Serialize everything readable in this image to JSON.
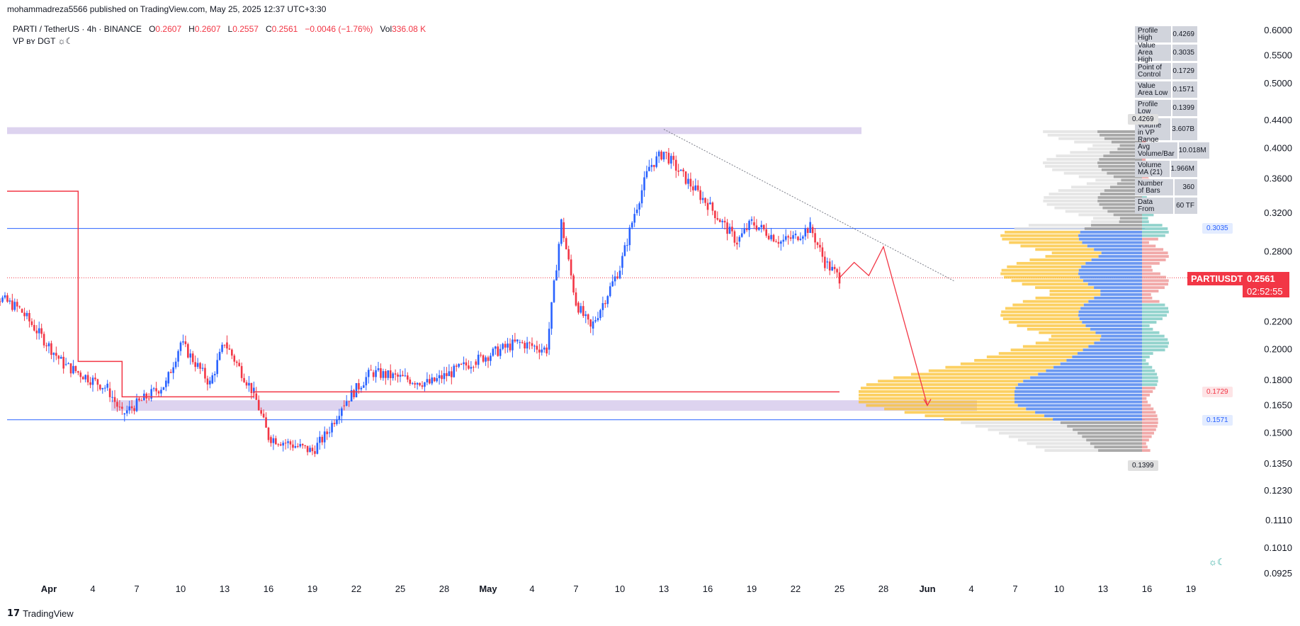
{
  "header": {
    "published": "mohammadreza5566 published on TradingView.com, May 25, 2025 12:37 UTC+3:30"
  },
  "legend": {
    "symbol": "PARTI / TetherUS · 4h · BINANCE",
    "o_label": "O",
    "o_value": "0.2607",
    "h_label": "H",
    "h_value": "0.2607",
    "l_label": "L",
    "l_value": "0.2557",
    "c_label": "C",
    "c_value": "0.2561",
    "change": "−0.0046 (−1.76%)",
    "vol_label": "Vol",
    "vol_value": "336.08 K",
    "indicator": "VP ʙʏ DGT ☼☾"
  },
  "stats": [
    {
      "key": "Profile High",
      "value": "0.4269"
    },
    {
      "key": "Value Area High",
      "value": "0.3035"
    },
    {
      "key": "Point of Control",
      "value": "0.1729"
    },
    {
      "key": "Value Area Low",
      "value": "0.1571"
    },
    {
      "key": "Profile Low",
      "value": "0.1399"
    },
    {
      "key": "Total Volume in VP Range",
      "value": "3.607B"
    },
    {
      "key": "Avg Volume/Bar",
      "value": "10.018M"
    },
    {
      "key": "Volume MA (21)",
      "value": "1.966M"
    },
    {
      "key": "Number of Bars",
      "value": "360"
    },
    {
      "key": "Data From",
      "value": "60 TF"
    }
  ],
  "last_price": {
    "ticker": "PARTIUSDT",
    "price": "0.2561",
    "countdown": "02:52:55",
    "color": "#f23645"
  },
  "profile_tags": {
    "high": "0.4269",
    "vah": "0.3035",
    "poc": "0.1729",
    "val": "0.1571",
    "low": "0.1399"
  },
  "footer": {
    "brand": "TradingView",
    "logo": "tv-logo-icon"
  },
  "colors": {
    "up": "#2962ff",
    "down": "#f23645",
    "zone": "#d1c4e9",
    "vah_val_line": "#2962ff",
    "volume_up": "#fbc02d",
    "volume_bar": "#5b8def",
    "volume_gray": "#9e9e9e"
  },
  "chart_data": {
    "type": "candlestick",
    "symbol": "PARTI / TetherUS",
    "interval": "4h",
    "exchange": "BINANCE",
    "y_axis": {
      "scale": "log",
      "ticks": [
        0.0925,
        0.101,
        0.111,
        0.123,
        0.135,
        0.15,
        0.165,
        0.18,
        0.2,
        0.22,
        0.28,
        0.32,
        0.36,
        0.4,
        0.44,
        0.5,
        0.55,
        0.6
      ],
      "tick_labels": [
        "0.0925",
        "0.1010",
        "0.1110",
        "0.1230",
        "0.1350",
        "0.1500",
        "0.1650",
        "0.1800",
        "0.2000",
        "0.2200",
        "0.2800",
        "0.3200",
        "0.3600",
        "0.4000",
        "0.4400",
        "0.5000",
        "0.5500",
        "0.6000"
      ]
    },
    "x_axis": {
      "tick_labels": [
        "Apr",
        "4",
        "7",
        "10",
        "13",
        "16",
        "19",
        "22",
        "25",
        "28",
        "May",
        "4",
        "7",
        "10",
        "13",
        "16",
        "19",
        "22",
        "25",
        "28",
        "Jun",
        "4",
        "7",
        "10",
        "13",
        "16",
        "19"
      ]
    },
    "trend_path": [
      {
        "date": "2025-03-27",
        "close": 0.25
      },
      {
        "date": "2025-03-30",
        "close": 0.23
      },
      {
        "date": "2025-04-02",
        "close": 0.19
      },
      {
        "date": "2025-04-05",
        "close": 0.175
      },
      {
        "date": "2025-04-06",
        "close": 0.16
      },
      {
        "date": "2025-04-09",
        "close": 0.178
      },
      {
        "date": "2025-04-10",
        "close": 0.205
      },
      {
        "date": "2025-04-12",
        "close": 0.178
      },
      {
        "date": "2025-04-13",
        "close": 0.205
      },
      {
        "date": "2025-04-15",
        "close": 0.172
      },
      {
        "date": "2025-04-16",
        "close": 0.148
      },
      {
        "date": "2025-04-19",
        "close": 0.141
      },
      {
        "date": "2025-04-20",
        "close": 0.15
      },
      {
        "date": "2025-04-21",
        "close": 0.165
      },
      {
        "date": "2025-04-23",
        "close": 0.185
      },
      {
        "date": "2025-04-27",
        "close": 0.178
      },
      {
        "date": "2025-04-30",
        "close": 0.192
      },
      {
        "date": "2025-05-03",
        "close": 0.205
      },
      {
        "date": "2025-05-05",
        "close": 0.2
      },
      {
        "date": "2025-05-06",
        "close": 0.31
      },
      {
        "date": "2025-05-07",
        "close": 0.235
      },
      {
        "date": "2025-05-08",
        "close": 0.215
      },
      {
        "date": "2025-05-10",
        "close": 0.265
      },
      {
        "date": "2025-05-11",
        "close": 0.32
      },
      {
        "date": "2025-05-12",
        "close": 0.375
      },
      {
        "date": "2025-05-13",
        "close": 0.395
      },
      {
        "date": "2025-05-14",
        "close": 0.37
      },
      {
        "date": "2025-05-16",
        "close": 0.33
      },
      {
        "date": "2025-05-18",
        "close": 0.29
      },
      {
        "date": "2025-05-19",
        "close": 0.31
      },
      {
        "date": "2025-05-21",
        "close": 0.29
      },
      {
        "date": "2025-05-22",
        "close": 0.295
      },
      {
        "date": "2025-05-23",
        "close": 0.305
      },
      {
        "date": "2025-05-24",
        "close": 0.27
      },
      {
        "date": "2025-05-25",
        "close": 0.2561
      }
    ],
    "projection": [
      {
        "date": "2025-05-25",
        "price": 0.2561
      },
      {
        "date": "2025-05-26",
        "price": 0.27
      },
      {
        "date": "2025-05-27",
        "price": 0.258
      },
      {
        "date": "2025-05-28",
        "price": 0.285
      },
      {
        "date": "2025-05-31",
        "price": 0.165
      }
    ],
    "levels": {
      "profile_high": 0.4269,
      "value_area_high": 0.3035,
      "point_of_control": 0.1729,
      "value_area_low": 0.1571,
      "profile_low": 0.1399,
      "last": 0.2561
    },
    "zones": [
      {
        "top": 0.43,
        "bottom": 0.42
      },
      {
        "top": 0.168,
        "bottom": 0.162
      }
    ],
    "poc_line_steps": [
      {
        "from": "2025-03-26",
        "to": "2025-04-03",
        "price": 0.345
      },
      {
        "from": "2025-04-03",
        "to": "2025-04-06",
        "price": 0.192
      },
      {
        "from": "2025-04-06",
        "to": "2025-04-15",
        "price": 0.17
      },
      {
        "from": "2025-04-15",
        "to": "2025-05-25",
        "price": 0.1729
      }
    ],
    "trendline": [
      {
        "date": "2025-05-13",
        "price": 0.427
      },
      {
        "date": "2025-05-29",
        "price": 0.25
      }
    ]
  }
}
